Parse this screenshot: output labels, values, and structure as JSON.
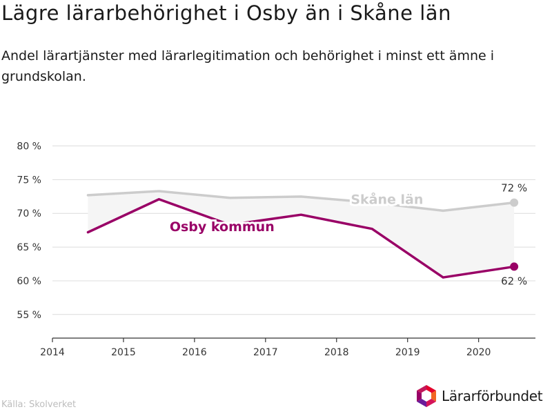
{
  "title": "Lägre lärarbehörighet i Osby än i Skåne län",
  "subtitle": "Andel lärartjänster med lärarlegitimation och behörighet i minst ett ämne i grundskolan.",
  "source": "Källa: Skolverket",
  "brand": {
    "name": "Lärarförbundet",
    "icon": "lararforbundet-logo-icon"
  },
  "chart_data": {
    "type": "line",
    "x_ticks": [
      "2014",
      "2015",
      "2016",
      "2017",
      "2018",
      "2019",
      "2020"
    ],
    "y_ticks": [
      "55 %",
      "60 %",
      "65 %",
      "70 %",
      "75 %",
      "80 %"
    ],
    "xlim": [
      2014,
      2020.8
    ],
    "ylim": [
      51.5,
      82
    ],
    "grid": true,
    "fill_between_series": true,
    "series": [
      {
        "name": "Skåne län",
        "color": "#cccccc",
        "x": [
          2014.5,
          2015.5,
          2016.5,
          2017.5,
          2018.5,
          2019.5,
          2020.5
        ],
        "y": [
          72.7,
          73.3,
          72.3,
          72.5,
          71.6,
          70.4,
          71.6
        ],
        "end_label": "72 %"
      },
      {
        "name": "Osby kommun",
        "color": "#990066",
        "x": [
          2014.5,
          2015.5,
          2016.5,
          2017.5,
          2018.5,
          2019.5,
          2020.5
        ],
        "y": [
          67.2,
          72.1,
          68.3,
          69.8,
          67.7,
          60.5,
          62.1
        ],
        "end_label": "62 %"
      }
    ]
  }
}
